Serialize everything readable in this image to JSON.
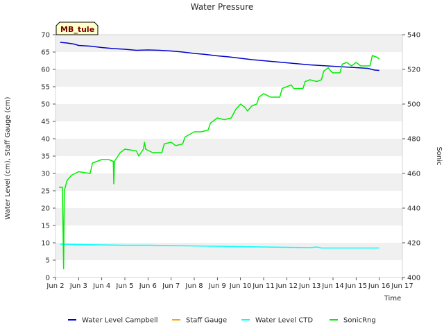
{
  "chart_data": {
    "type": "line",
    "title": "Water Pressure",
    "xlabel": "Time",
    "ylabel_left": "Water Level (cm), Staff Gauge (cm)",
    "ylabel_right": "Sonic",
    "badge": "MB_tule",
    "x_domain": [
      2,
      17
    ],
    "x_ticks": [
      {
        "value": 2,
        "label": "Jun 2"
      },
      {
        "value": 3,
        "label": "Jun 3"
      },
      {
        "value": 4,
        "label": "Jun 4"
      },
      {
        "value": 5,
        "label": "Jun 5"
      },
      {
        "value": 6,
        "label": "Jun 6"
      },
      {
        "value": 7,
        "label": "Jun 7"
      },
      {
        "value": 8,
        "label": "Jun 8"
      },
      {
        "value": 9,
        "label": "Jun 9"
      },
      {
        "value": 10,
        "label": "Jun 10"
      },
      {
        "value": 11,
        "label": "Jun 11"
      },
      {
        "value": 12,
        "label": "Jun 12"
      },
      {
        "value": 13,
        "label": "Jun 13"
      },
      {
        "value": 14,
        "label": "Jun 14"
      },
      {
        "value": 15,
        "label": "Jun 15"
      },
      {
        "value": 16,
        "label": "Jun 16"
      },
      {
        "value": 17,
        "label": "Jun 17"
      }
    ],
    "ylim_left": [
      0,
      70
    ],
    "y_ticks_left": [
      0,
      5,
      10,
      15,
      20,
      25,
      30,
      35,
      40,
      45,
      50,
      55,
      60,
      65,
      70
    ],
    "ylim_right": [
      400,
      540
    ],
    "y_ticks_right": [
      400,
      420,
      440,
      460,
      480,
      500,
      520,
      540
    ],
    "grid_bands": true,
    "legend_position": "bottom",
    "series": [
      {
        "name": "Water Level Campbell",
        "axis": "left",
        "color": "#0000cc",
        "points": [
          [
            2.2,
            67.8
          ],
          [
            2.5,
            67.6
          ],
          [
            2.8,
            67.3
          ],
          [
            3.0,
            66.9
          ],
          [
            3.5,
            66.7
          ],
          [
            4.0,
            66.3
          ],
          [
            4.5,
            66.0
          ],
          [
            5.0,
            65.8
          ],
          [
            5.5,
            65.5
          ],
          [
            6.0,
            65.6
          ],
          [
            6.5,
            65.5
          ],
          [
            7.0,
            65.3
          ],
          [
            7.5,
            65.0
          ],
          [
            8.0,
            64.6
          ],
          [
            8.5,
            64.3
          ],
          [
            9.0,
            63.9
          ],
          [
            9.5,
            63.6
          ],
          [
            10.0,
            63.2
          ],
          [
            10.5,
            62.8
          ],
          [
            11.0,
            62.5
          ],
          [
            11.5,
            62.2
          ],
          [
            12.0,
            61.9
          ],
          [
            12.5,
            61.6
          ],
          [
            13.0,
            61.3
          ],
          [
            13.5,
            61.1
          ],
          [
            14.0,
            60.9
          ],
          [
            14.5,
            60.7
          ],
          [
            15.0,
            60.5
          ],
          [
            15.5,
            60.3
          ],
          [
            15.8,
            59.8
          ],
          [
            16.0,
            59.7
          ]
        ]
      },
      {
        "name": "Staff Gauge",
        "axis": "left",
        "color": "#ffa500",
        "points": []
      },
      {
        "name": "Water Level CTD",
        "axis": "left",
        "color": "#00ffff",
        "points": [
          [
            2.2,
            9.6
          ],
          [
            3.0,
            9.5
          ],
          [
            4.0,
            9.4
          ],
          [
            5.0,
            9.3
          ],
          [
            6.0,
            9.3
          ],
          [
            7.0,
            9.2
          ],
          [
            8.0,
            9.1
          ],
          [
            9.0,
            9.0
          ],
          [
            10.0,
            8.9
          ],
          [
            11.0,
            8.8
          ],
          [
            12.0,
            8.7
          ],
          [
            13.0,
            8.6
          ],
          [
            13.3,
            8.8
          ],
          [
            13.5,
            8.5
          ],
          [
            14.0,
            8.5
          ],
          [
            15.0,
            8.5
          ],
          [
            16.0,
            8.5
          ]
        ]
      },
      {
        "name": "SonicRng",
        "axis": "right",
        "color": "#00ee00",
        "points": [
          [
            2.15,
            452
          ],
          [
            2.3,
            452
          ],
          [
            2.35,
            405
          ],
          [
            2.38,
            450
          ],
          [
            2.5,
            456
          ],
          [
            2.7,
            459
          ],
          [
            3.0,
            461
          ],
          [
            3.5,
            460
          ],
          [
            3.6,
            466
          ],
          [
            4.0,
            468
          ],
          [
            4.3,
            468
          ],
          [
            4.5,
            467
          ],
          [
            4.52,
            454
          ],
          [
            4.55,
            467
          ],
          [
            4.8,
            472
          ],
          [
            5.0,
            474
          ],
          [
            5.5,
            473
          ],
          [
            5.6,
            470
          ],
          [
            5.8,
            474
          ],
          [
            5.85,
            478
          ],
          [
            5.9,
            474
          ],
          [
            6.2,
            472
          ],
          [
            6.6,
            472
          ],
          [
            6.7,
            477
          ],
          [
            7.0,
            478
          ],
          [
            7.2,
            476
          ],
          [
            7.5,
            477
          ],
          [
            7.6,
            481
          ],
          [
            8.0,
            484
          ],
          [
            8.3,
            484
          ],
          [
            8.6,
            485
          ],
          [
            8.7,
            489
          ],
          [
            9.0,
            492
          ],
          [
            9.3,
            491
          ],
          [
            9.6,
            492
          ],
          [
            9.8,
            497
          ],
          [
            10.0,
            500
          ],
          [
            10.2,
            498
          ],
          [
            10.3,
            496
          ],
          [
            10.5,
            499
          ],
          [
            10.7,
            500
          ],
          [
            10.8,
            504
          ],
          [
            11.0,
            506
          ],
          [
            11.3,
            504
          ],
          [
            11.7,
            504
          ],
          [
            11.8,
            509
          ],
          [
            12.0,
            510
          ],
          [
            12.2,
            511
          ],
          [
            12.3,
            509
          ],
          [
            12.7,
            509
          ],
          [
            12.8,
            513
          ],
          [
            13.0,
            514
          ],
          [
            13.3,
            513
          ],
          [
            13.5,
            514
          ],
          [
            13.6,
            519
          ],
          [
            13.8,
            521
          ],
          [
            13.9,
            519
          ],
          [
            14.0,
            518
          ],
          [
            14.3,
            518
          ],
          [
            14.4,
            523
          ],
          [
            14.6,
            524
          ],
          [
            14.8,
            522
          ],
          [
            15.0,
            524
          ],
          [
            15.2,
            522
          ],
          [
            15.6,
            522
          ],
          [
            15.7,
            528
          ],
          [
            15.9,
            527
          ],
          [
            16.0,
            526
          ]
        ]
      }
    ]
  }
}
